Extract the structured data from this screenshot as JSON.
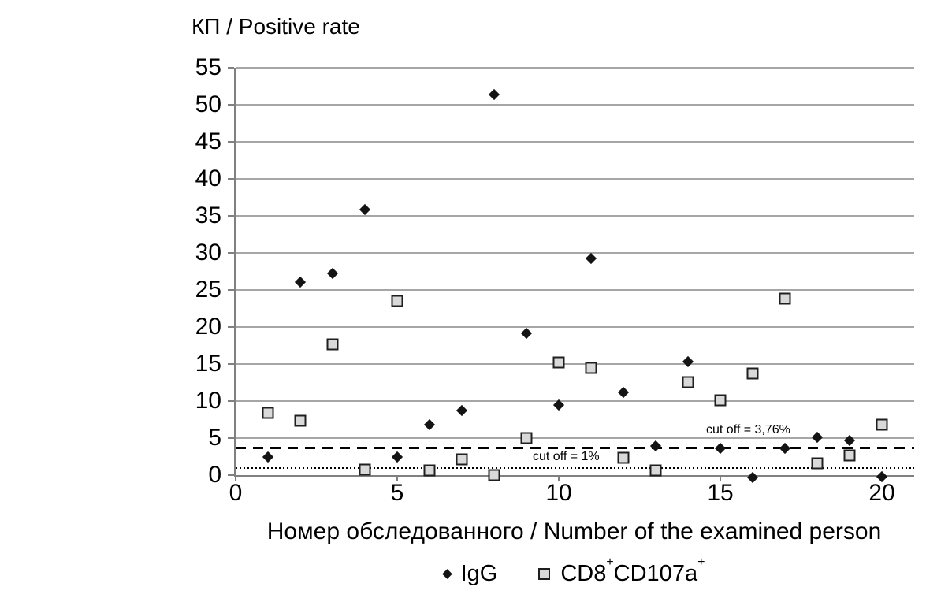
{
  "chart_data": {
    "type": "scatter",
    "title": "КП / Positive rate",
    "xlabel": "Номер обследованного / Number of the examined person",
    "x": [
      1,
      2,
      3,
      4,
      5,
      6,
      7,
      8,
      9,
      10,
      11,
      12,
      13,
      14,
      15,
      16,
      17,
      18,
      19,
      20
    ],
    "series": [
      {
        "name": "IgG",
        "marker": "diamond",
        "color": "#141414",
        "values": [
          2.5,
          26.1,
          27.2,
          35.9,
          2.4,
          6.8,
          8.7,
          51.4,
          19.2,
          9.5,
          29.3,
          11.2,
          3.9,
          15.3,
          3.6,
          -0.3,
          3.6,
          5.1,
          4.7,
          -0.2
        ]
      },
      {
        "name": "CD8+CD107a+",
        "marker": "square",
        "fill": "#d9d9d9",
        "border": "#1f1f1f",
        "values": [
          8.4,
          7.3,
          17.7,
          0.7,
          23.5,
          0.6,
          2.1,
          0.0,
          5.0,
          15.2,
          14.5,
          2.3,
          0.6,
          12.6,
          10.1,
          13.7,
          23.8,
          1.6,
          2.7,
          6.8
        ]
      }
    ],
    "cutoff_lines": [
      {
        "label": "cut off = 3,76%",
        "value": 3.76,
        "style": "dashed"
      },
      {
        "label": "cut off = 1%",
        "value": 1,
        "style": "dotted"
      }
    ],
    "xlim": [
      0,
      21
    ],
    "ylim": [
      0,
      55
    ],
    "x_ticks": [
      0,
      5,
      10,
      15,
      20
    ],
    "y_ticks": [
      0,
      5,
      10,
      15,
      20,
      25,
      30,
      35,
      40,
      45,
      50,
      55
    ],
    "grid": "horizontal",
    "legend_position": "bottom",
    "colors": {
      "gridline": "#a6a6a6",
      "axis": "#808080",
      "diamond": "#141414",
      "square_fill": "#d9d9d9",
      "square_border": "#1f1f1f"
    }
  },
  "cutoff_labels": {
    "upper": "cut off = 3,76%",
    "lower": "cut off = 1%"
  },
  "legend": {
    "igg_label": "IgG",
    "cd8_base1": "CD8",
    "cd8_sup1": "+",
    "cd8_base2": "CD107a",
    "cd8_sup2": "+"
  }
}
